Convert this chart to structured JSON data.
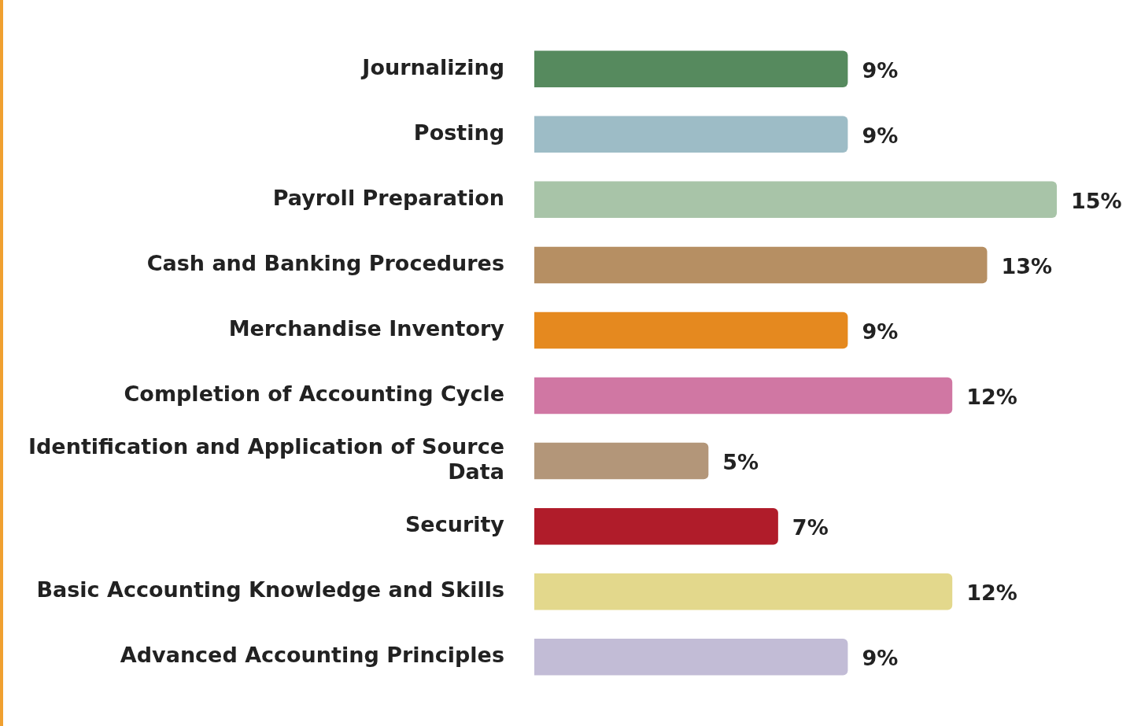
{
  "chart_data": {
    "type": "bar",
    "orientation": "horizontal",
    "categories": [
      "Journalizing",
      "Posting",
      "Payroll Preparation",
      "Cash and Banking Procedures",
      "Merchandise Inventory",
      "Completion of Accounting Cycle",
      "Identification and Application of Source Data",
      "Security",
      "Basic Accounting Knowledge and Skills",
      "Advanced Accounting Principles"
    ],
    "values": [
      9,
      9,
      15,
      13,
      9,
      12,
      5,
      7,
      12,
      9
    ],
    "colors": [
      "#568a5e",
      "#9dbcc6",
      "#a8c4a8",
      "#b68f63",
      "#e5891f",
      "#d077a3",
      "#b39679",
      "#b01c2a",
      "#e3d88c",
      "#c2bcd6"
    ],
    "value_labels": [
      "9%",
      "9%",
      "15%",
      "13%",
      "9%",
      "12%",
      "5%",
      "7%",
      "12%",
      "9%"
    ],
    "legend": false,
    "tick_labels": "y"
  }
}
